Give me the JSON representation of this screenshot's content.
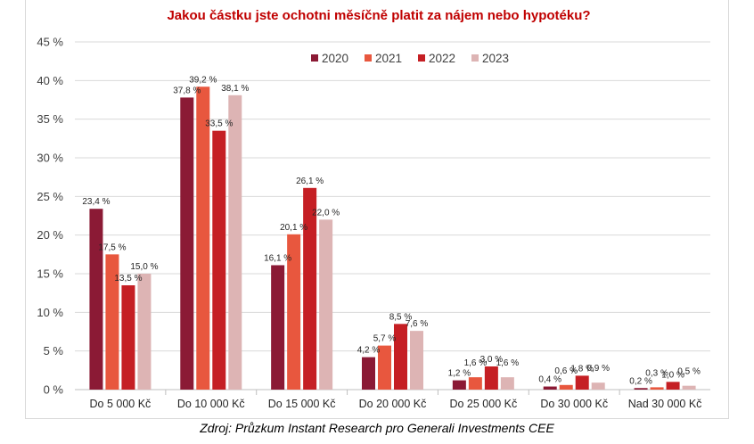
{
  "chart_data": {
    "type": "bar",
    "title": "Jakou částku jste ochotni měsíčně platit za nájem nebo hypotéku?",
    "categories": [
      "Do 5 000 Kč",
      "Do 10 000 Kč",
      "Do 15 000 Kč",
      "Do 20 000 Kč",
      "Do 25 000 Kč",
      "Do 30 000 Kč",
      "Nad 30 000 Kč"
    ],
    "series": [
      {
        "name": "2020",
        "color": "#8b1a35",
        "values": [
          23.4,
          37.8,
          16.1,
          4.2,
          1.2,
          0.4,
          0.2
        ],
        "labels": [
          "23,4 %",
          "37,8 %",
          "16,1 %",
          "4,2 %",
          "1,2 %",
          "0,4 %",
          "0,2 %"
        ]
      },
      {
        "name": "2021",
        "color": "#e8573e",
        "values": [
          17.5,
          39.2,
          20.1,
          5.7,
          1.6,
          0.6,
          0.3
        ],
        "labels": [
          "17,5 %",
          "39,2 %",
          "20,1 %",
          "5,7 %",
          "1,6 %",
          "0,6 %",
          "0,3 %"
        ]
      },
      {
        "name": "2022",
        "color": "#c51f24",
        "values": [
          13.5,
          33.5,
          26.1,
          8.5,
          3.0,
          1.8,
          1.0
        ],
        "labels": [
          "13,5 %",
          "33,5 %",
          "26,1 %",
          "8,5 %",
          "3,0 %",
          "1,8 %",
          "1,0 %"
        ]
      },
      {
        "name": "2023",
        "color": "#ddb4b4",
        "values": [
          15.0,
          38.1,
          22.0,
          7.6,
          1.6,
          0.9,
          0.5
        ],
        "labels": [
          "15,0 %",
          "38,1 %",
          "22,0 %",
          "7,6 %",
          "1,6 %",
          "0,9 %",
          "0,5 %"
        ]
      }
    ],
    "ylim": [
      0,
      45
    ],
    "yticks": [
      0,
      5,
      10,
      15,
      20,
      25,
      30,
      35,
      40,
      45
    ],
    "ytick_labels": [
      "0 %",
      "5 %",
      "10 %",
      "15 %",
      "20 %",
      "25 %",
      "30 %",
      "35 %",
      "40 %",
      "45 %"
    ],
    "grid": true,
    "legend_position": "top-right"
  },
  "source_note": "Zdroj: Průzkum Instant Research pro Generali Investments CEE"
}
